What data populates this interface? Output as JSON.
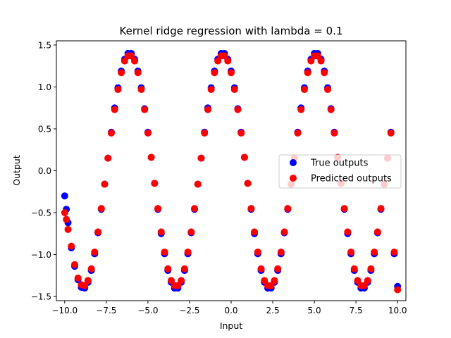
{
  "chart_data": {
    "type": "scatter",
    "title": "Kernel ridge regression with lambda = 0.1",
    "xlabel": "Input",
    "ylabel": "Output",
    "xlim": [
      -10.5,
      10.5
    ],
    "ylim": [
      -1.55,
      1.55
    ],
    "xticks": [
      -10.0,
      -7.5,
      -5.0,
      -2.5,
      0.0,
      2.5,
      5.0,
      7.5,
      10.0
    ],
    "xtick_labels": [
      "−10.0",
      "−7.5",
      "−5.0",
      "−2.5",
      "0.0",
      "2.5",
      "5.0",
      "7.5",
      "10.0"
    ],
    "yticks": [
      -1.5,
      -1.0,
      -0.5,
      0.0,
      0.5,
      1.0,
      1.5
    ],
    "ytick_labels": [
      "−1.5",
      "−1.0",
      "−0.5",
      "0.0",
      "0.5",
      "1.0",
      "1.5"
    ],
    "grid": false,
    "legend_position": "center-right",
    "series": [
      {
        "name": "True outputs",
        "color": "#0000ff",
        "x": [
          -10.0,
          -9.9,
          -9.8,
          -9.6,
          -9.4,
          -9.2,
          -9.0,
          -8.8,
          -8.6,
          -8.4,
          -8.2,
          -8.0,
          -7.8,
          -7.6,
          -7.4,
          -7.2,
          -7.0,
          -6.8,
          -6.6,
          -6.4,
          -6.2,
          -6.0,
          -5.8,
          -5.6,
          -5.4,
          -5.2,
          -5.0,
          -4.8,
          -4.6,
          -4.4,
          -4.2,
          -4.0,
          -3.8,
          -3.6,
          -3.4,
          -3.2,
          -3.0,
          -2.8,
          -2.6,
          -2.4,
          -2.2,
          -2.0,
          -1.8,
          -1.6,
          -1.4,
          -1.2,
          -1.0,
          -0.8,
          -0.6,
          -0.4,
          -0.2,
          0.0,
          0.2,
          0.4,
          0.6,
          0.8,
          1.0,
          1.2,
          1.4,
          1.6,
          1.8,
          2.0,
          2.2,
          2.4,
          2.6,
          2.8,
          3.0,
          3.2,
          3.4,
          3.6,
          3.8,
          4.0,
          4.2,
          4.4,
          4.6,
          4.8,
          5.0,
          5.2,
          5.4,
          5.6,
          5.8,
          6.0,
          6.2,
          6.4,
          6.6,
          6.8,
          7.0,
          7.2,
          7.4,
          7.6,
          7.8,
          8.0,
          8.2,
          8.4,
          8.6,
          8.8,
          9.0,
          9.2,
          9.4,
          9.6,
          9.8,
          10.0
        ],
        "y": [
          -0.3,
          -0.46,
          -0.62,
          -0.92,
          -1.14,
          -1.3,
          -1.39,
          -1.4,
          -1.33,
          -1.19,
          -0.99,
          -0.74,
          -0.46,
          -0.16,
          0.15,
          0.46,
          0.75,
          0.99,
          1.19,
          1.33,
          1.4,
          1.4,
          1.33,
          1.19,
          0.99,
          0.74,
          0.46,
          0.16,
          -0.15,
          -0.46,
          -0.75,
          -0.99,
          -1.19,
          -1.33,
          -1.4,
          -1.4,
          -1.33,
          -1.19,
          -0.99,
          -0.74,
          -0.46,
          -0.16,
          0.15,
          0.46,
          0.75,
          0.99,
          1.19,
          1.33,
          1.4,
          1.4,
          1.33,
          1.19,
          0.99,
          0.74,
          0.46,
          0.16,
          -0.15,
          -0.46,
          -0.75,
          -0.99,
          -1.19,
          -1.33,
          -1.4,
          -1.4,
          -1.33,
          -1.19,
          -0.99,
          -0.74,
          -0.46,
          -0.16,
          0.15,
          0.46,
          0.75,
          0.99,
          1.19,
          1.33,
          1.4,
          1.4,
          1.33,
          1.19,
          0.99,
          0.74,
          0.46,
          0.16,
          -0.15,
          -0.46,
          -0.75,
          -0.99,
          -1.19,
          -1.33,
          -1.4,
          -1.4,
          -1.33,
          -1.19,
          -0.99,
          -0.74,
          -0.46,
          -0.16,
          0.15,
          0.46,
          -0.99,
          -1.38
        ]
      },
      {
        "name": "Predicted outputs",
        "color": "#ff0000",
        "x": [
          -10.0,
          -9.9,
          -9.8,
          -9.6,
          -9.4,
          -9.2,
          -9.0,
          -8.8,
          -8.6,
          -8.4,
          -8.2,
          -8.0,
          -7.8,
          -7.6,
          -7.4,
          -7.2,
          -7.0,
          -6.8,
          -6.6,
          -6.4,
          -6.2,
          -6.0,
          -5.8,
          -5.6,
          -5.4,
          -5.2,
          -5.0,
          -4.8,
          -4.6,
          -4.4,
          -4.2,
          -4.0,
          -3.8,
          -3.6,
          -3.4,
          -3.2,
          -3.0,
          -2.8,
          -2.6,
          -2.4,
          -2.2,
          -2.0,
          -1.8,
          -1.6,
          -1.4,
          -1.2,
          -1.0,
          -0.8,
          -0.6,
          -0.4,
          -0.2,
          0.0,
          0.2,
          0.4,
          0.6,
          0.8,
          1.0,
          1.2,
          1.4,
          1.6,
          1.8,
          2.0,
          2.2,
          2.4,
          2.6,
          2.8,
          3.0,
          3.2,
          3.4,
          3.6,
          3.8,
          4.0,
          4.2,
          4.4,
          4.6,
          4.8,
          5.0,
          5.2,
          5.4,
          5.6,
          5.8,
          6.0,
          6.2,
          6.4,
          6.6,
          6.8,
          7.0,
          7.2,
          7.4,
          7.6,
          7.8,
          8.0,
          8.2,
          8.4,
          8.6,
          8.8,
          9.0,
          9.2,
          9.4,
          9.6,
          9.8,
          10.0
        ],
        "y": [
          -0.5,
          -0.58,
          -0.7,
          -0.9,
          -1.12,
          -1.28,
          -1.36,
          -1.37,
          -1.31,
          -1.17,
          -0.97,
          -0.73,
          -0.45,
          -0.16,
          0.15,
          0.45,
          0.73,
          0.97,
          1.17,
          1.31,
          1.37,
          1.37,
          1.31,
          1.17,
          0.97,
          0.73,
          0.45,
          0.16,
          -0.15,
          -0.45,
          -0.73,
          -0.97,
          -1.17,
          -1.31,
          -1.37,
          -1.37,
          -1.31,
          -1.17,
          -0.97,
          -0.73,
          -0.45,
          -0.16,
          0.15,
          0.45,
          0.73,
          0.97,
          1.17,
          1.31,
          1.37,
          1.37,
          1.31,
          1.17,
          0.97,
          0.73,
          0.45,
          0.16,
          -0.15,
          -0.45,
          -0.73,
          -0.97,
          -1.17,
          -1.31,
          -1.37,
          -1.37,
          -1.31,
          -1.17,
          -0.97,
          -0.73,
          -0.45,
          -0.16,
          0.15,
          0.45,
          0.73,
          0.97,
          1.17,
          1.31,
          1.37,
          1.37,
          1.31,
          1.17,
          0.97,
          0.73,
          0.45,
          0.16,
          -0.15,
          -0.45,
          -0.73,
          -0.97,
          -1.17,
          -1.31,
          -1.37,
          -1.37,
          -1.31,
          -1.17,
          -0.97,
          -0.73,
          -0.45,
          -0.16,
          0.15,
          0.45,
          -0.97,
          -1.42
        ]
      }
    ]
  }
}
